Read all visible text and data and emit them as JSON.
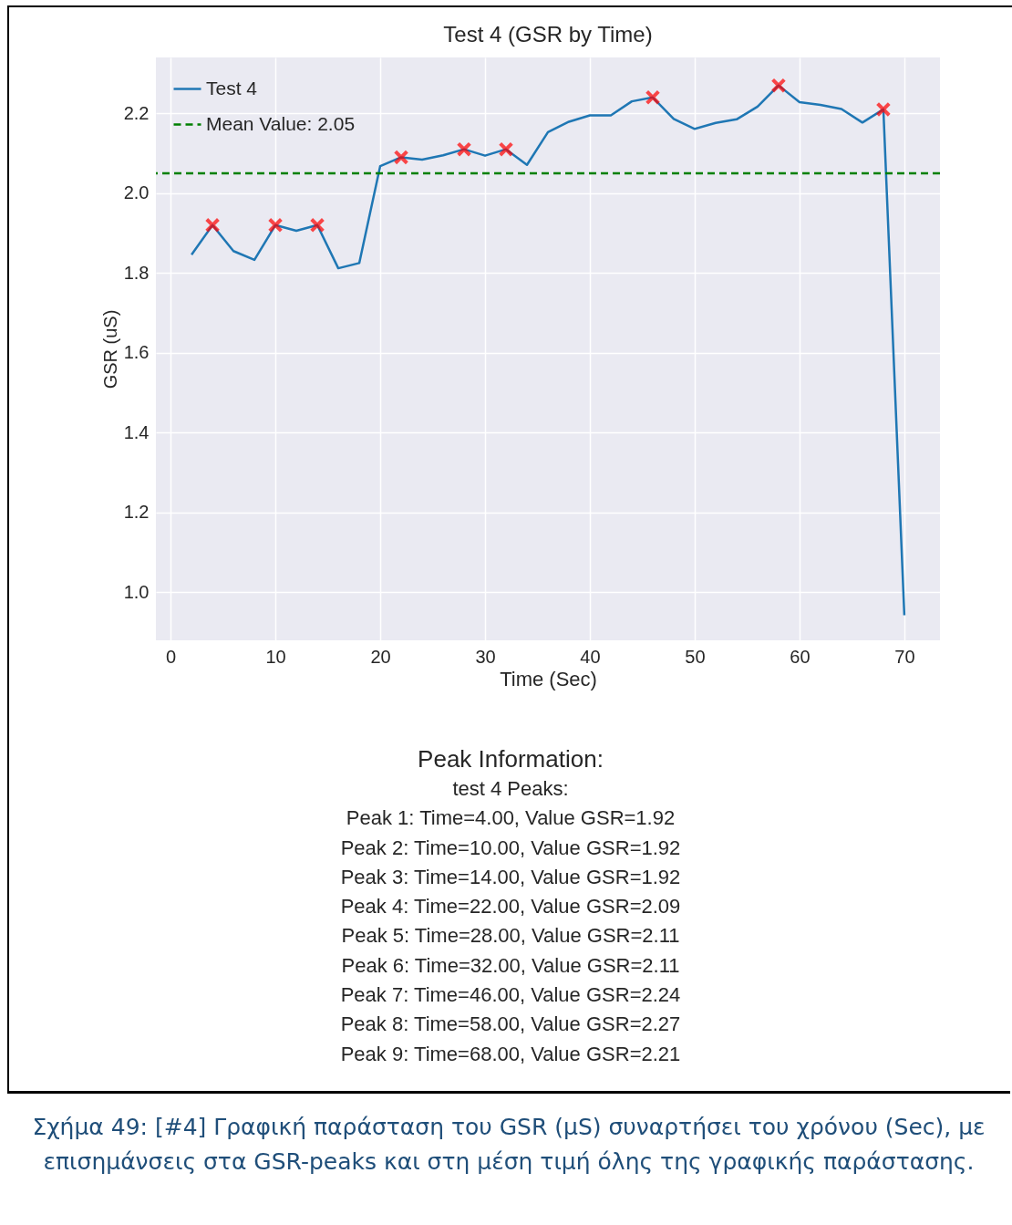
{
  "chart_data": {
    "type": "line",
    "title": "Test 4 (GSR by Time)",
    "xlabel": "Time (Sec)",
    "ylabel": "GSR (uS)",
    "xlim": [
      -1.4,
      73.4
    ],
    "xticks": [
      0,
      10,
      20,
      30,
      40,
      50,
      60,
      70
    ],
    "ylim": [
      0.88,
      2.34
    ],
    "yticks": [
      {
        "value": 1,
        "label": "1.0"
      },
      1.2,
      1.4,
      1.6,
      1.8,
      {
        "value": 2,
        "label": "2.0"
      },
      2.2
    ],
    "grid": true,
    "legend": "top left",
    "series": [
      {
        "name": "Test 4",
        "color": "#1f77b4",
        "x": [
          2,
          4,
          6,
          8,
          10,
          12,
          14,
          16,
          18,
          20,
          22,
          24,
          26,
          28,
          30,
          32,
          34,
          36,
          38,
          40,
          42,
          44,
          46,
          48,
          50,
          52,
          54,
          56,
          58,
          60,
          62,
          64,
          66,
          68,
          70
        ],
        "values": [
          1.846,
          1.92,
          1.855,
          1.833,
          1.92,
          1.906,
          1.92,
          1.812,
          1.825,
          2.068,
          2.09,
          2.084,
          2.095,
          2.11,
          2.094,
          2.11,
          2.071,
          2.153,
          2.179,
          2.195,
          2.195,
          2.23,
          2.24,
          2.186,
          2.161,
          2.176,
          2.185,
          2.217,
          2.27,
          2.228,
          2.221,
          2.211,
          2.177,
          2.21,
          0.943
        ]
      },
      {
        "type": "scatter",
        "color": "#ff0000",
        "marker": "cross",
        "x": [
          4,
          10,
          14,
          22,
          28,
          32,
          46,
          58,
          68
        ],
        "values": [
          1.92,
          1.92,
          1.92,
          2.09,
          2.11,
          2.11,
          2.24,
          2.27,
          2.21
        ]
      }
    ],
    "ref_lines": [
      {
        "axis": "y",
        "value": 2.05,
        "label": "Mean Value: 2.05",
        "color": "#008000",
        "line_style": "dashed"
      }
    ],
    "annotations": [
      "Peak Information:",
      "test 4 Peaks:",
      "Peak 1: Time=4.00, Value GSR=1.92",
      "Peak 2: Time=10.00, Value GSR=1.92",
      "Peak 3: Time=14.00, Value GSR=1.92",
      "Peak 4: Time=22.00, Value GSR=2.09",
      "Peak 5: Time=28.00, Value GSR=2.11",
      "Peak 6: Time=32.00, Value GSR=2.11",
      "Peak 7: Time=46.00, Value GSR=2.24",
      "Peak 8: Time=58.00, Value GSR=2.27",
      "Peak 9: Time=68.00, Value GSR=2.21",
      "Σχήμα 49: [#4] Γραφική παράσταση του GSR (μS) συναρτήσει του χρόνου (Sec), με επισημάνσεις στα GSR-peaks και στη μέση τιμή όλης της γραφικής παράστασης."
    ]
  }
}
